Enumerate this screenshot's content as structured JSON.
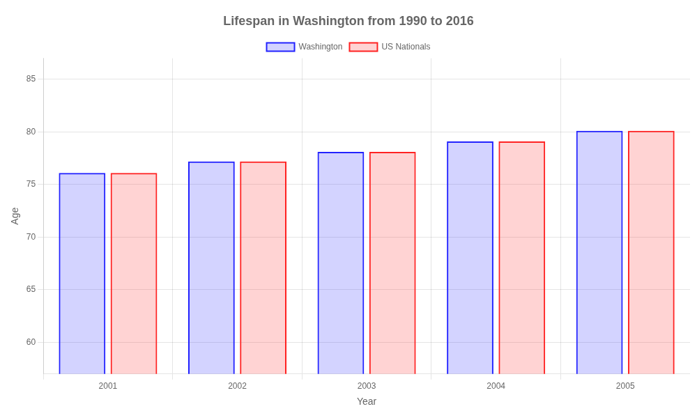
{
  "chart_data": {
    "type": "bar",
    "title": "Lifespan in Washington from 1990 to 2016",
    "xlabel": "Year",
    "ylabel": "Age",
    "categories": [
      2001,
      2002,
      2003,
      2004,
      2005
    ],
    "series": [
      {
        "name": "Washington",
        "color": "#2222ff",
        "values": [
          76.1,
          77.2,
          78.1,
          79.1,
          80.1
        ]
      },
      {
        "name": "US Nationals",
        "color": "#ff2222",
        "values": [
          76.1,
          77.2,
          78.1,
          79.1,
          80.1
        ]
      }
    ],
    "ylim": [
      57,
      87
    ],
    "yticks": [
      60,
      65,
      70,
      75,
      80,
      85
    ],
    "grid": true,
    "legend": "top"
  }
}
